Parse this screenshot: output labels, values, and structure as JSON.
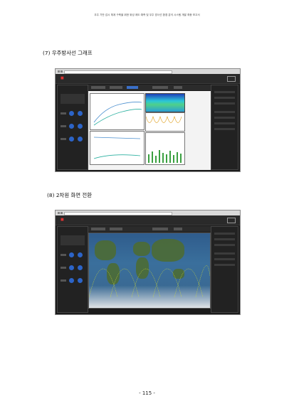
{
  "header": {
    "text": "우주 기반 감시 체계 구축을 위한 위성 궤도 예측 및 우주 방사선 환경 분석 시스템 개발 최종 보고서"
  },
  "sections": [
    {
      "label": "(7) 우주방사선 그래프"
    },
    {
      "label": "(8) 2차원 화면 전환"
    }
  ],
  "footer": {
    "page": "- 115 -"
  },
  "screenshots": [
    {
      "name": "radiation-graph-screen"
    },
    {
      "name": "2d-map-screen"
    }
  ]
}
